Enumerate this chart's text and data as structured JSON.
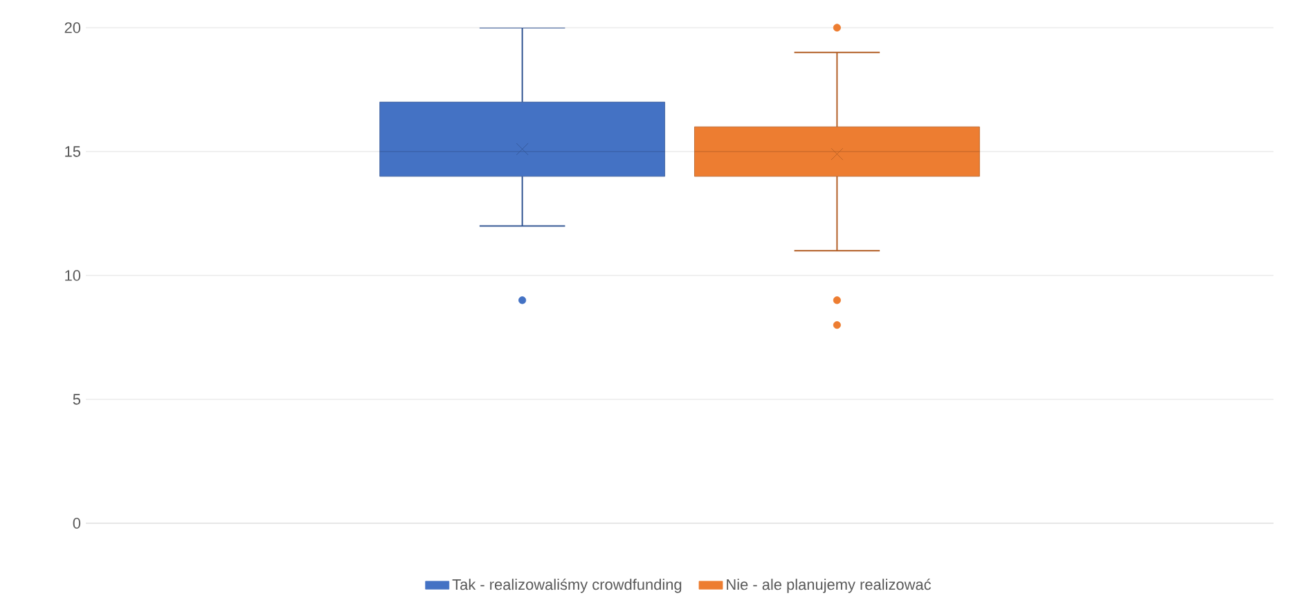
{
  "chart_data": {
    "type": "box",
    "categories": [
      null
    ],
    "series": [
      {
        "name": "Tak - realizowaliśmy crowdfunding",
        "color": "#4472c4",
        "boxes": [
          {
            "low": 12,
            "q1": 14,
            "median": 15,
            "q3": 17,
            "high": 20,
            "mean": 15.1,
            "outliers": [
              9
            ]
          }
        ]
      },
      {
        "name": "Nie - ale planujemy realizować",
        "color": "#ed7d31",
        "boxes": [
          {
            "low": 11,
            "q1": 14,
            "median": 15,
            "q3": 16,
            "high": 19,
            "mean": 14.9,
            "outliers": [
              20,
              9,
              8
            ]
          }
        ]
      }
    ],
    "ylim": [
      0,
      20
    ],
    "yticks": [
      0,
      5,
      10,
      15,
      20
    ],
    "grid": "y",
    "legend": "bottom"
  }
}
